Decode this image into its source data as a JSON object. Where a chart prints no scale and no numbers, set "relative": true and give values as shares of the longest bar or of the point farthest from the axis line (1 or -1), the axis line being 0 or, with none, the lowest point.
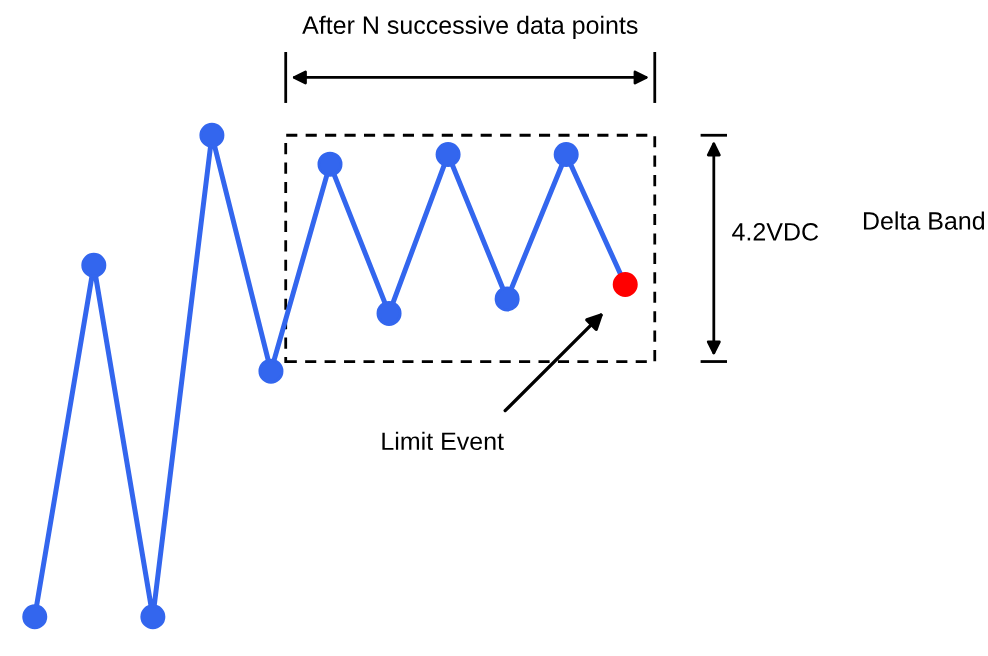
{
  "chart_data": {
    "type": "line",
    "relative": true,
    "categories": [
      null,
      null,
      null,
      null,
      null,
      null,
      null,
      null,
      null,
      null,
      null
    ],
    "series": [
      {
        "color": "#3366ee",
        "values": [
          0,
          0.73,
          0,
          1,
          0.51,
          0.94,
          0.63,
          0.96,
          0.66,
          0.96,
          0.69
        ],
        "colors": [
          "#3366ee",
          "#3366ee",
          "#3366ee",
          "#3366ee",
          "#3366ee",
          "#3366ee",
          "#3366ee",
          "#3366ee",
          "#3366ee",
          "#3366ee",
          "#ff0000"
        ]
      }
    ],
    "marker": "circle",
    "line_style": "solid",
    "grid": false,
    "legend": false,
    "annotations": [
      "After N successive data points",
      "4.2VDC",
      "Delta Band",
      "Limit Event"
    ]
  }
}
